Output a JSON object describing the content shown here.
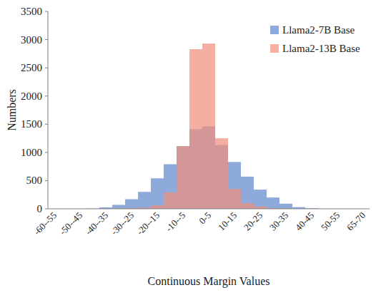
{
  "chart_data": {
    "type": "bar",
    "x_label": "Continuous Margin Values",
    "y_label": "Numbers",
    "categories": [
      "-60--55",
      null,
      "-50--45",
      null,
      "-40--35",
      null,
      "-30--25",
      null,
      "-20--15",
      null,
      "-10--5",
      null,
      "0-5",
      null,
      "10-15",
      null,
      "20-25",
      null,
      "30-35",
      null,
      "40-45",
      null,
      "50-55",
      null,
      "65-70"
    ],
    "series": [
      {
        "name": "Llama2-7B Base",
        "color": "#8eaadb",
        "values": [
          0,
          0,
          0,
          5,
          25,
          70,
          170,
          300,
          540,
          790,
          1110,
          1410,
          1460,
          1130,
          830,
          570,
          340,
          200,
          90,
          30,
          10,
          0,
          0,
          0,
          0
        ]
      },
      {
        "name": "Llama2-13B Base",
        "color": "#f28e7b",
        "values": [
          0,
          0,
          0,
          0,
          0,
          5,
          10,
          20,
          60,
          290,
          1110,
          2830,
          2930,
          1250,
          350,
          100,
          40,
          10,
          5,
          0,
          0,
          0,
          0,
          0,
          0
        ]
      }
    ],
    "ylim": [
      0,
      3500
    ],
    "yticks": [
      0,
      500,
      1000,
      1500,
      2000,
      2500,
      3000,
      3500
    ],
    "grid": false,
    "legend": "top-right"
  }
}
